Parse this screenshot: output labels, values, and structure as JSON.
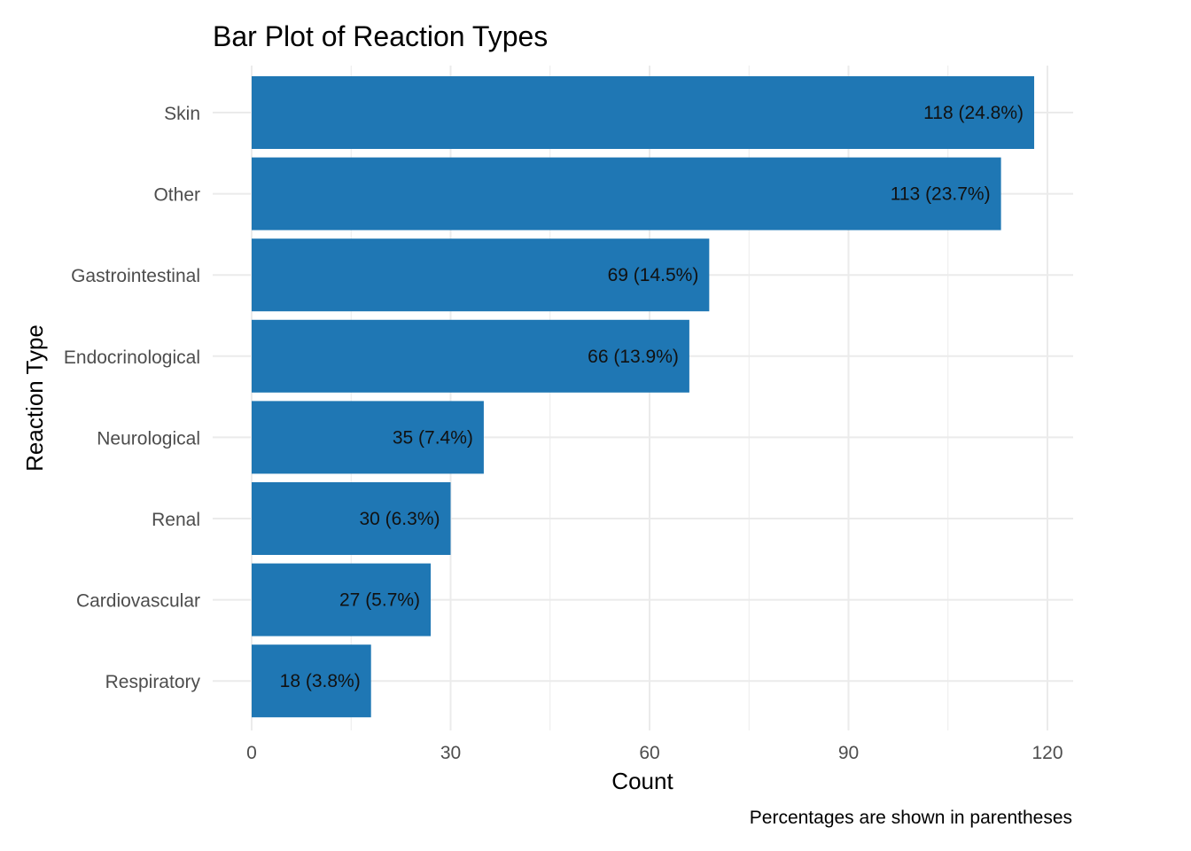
{
  "chart_data": {
    "type": "bar",
    "orientation": "horizontal",
    "title": "Bar Plot of Reaction Types",
    "xlabel": "Count",
    "ylabel": "Reaction Type",
    "caption": "Percentages are shown in parentheses",
    "categories": [
      "Skin",
      "Other",
      "Gastrointestinal",
      "Endocrinological",
      "Neurological",
      "Renal",
      "Cardiovascular",
      "Respiratory"
    ],
    "values": [
      118,
      113,
      69,
      66,
      35,
      30,
      27,
      18
    ],
    "data_labels": [
      "118 (24.8%)",
      "113 (23.7%)",
      "69 (14.5%)",
      "66 (13.9%)",
      "35 (7.4%)",
      "30 (6.3%)",
      "27 (5.7%)",
      "18 (3.8%)"
    ],
    "xlim": [
      0,
      124
    ],
    "xticks": [
      0,
      30,
      60,
      90,
      120
    ],
    "grid": true,
    "legend": "none",
    "bar_color": "#1f77b4",
    "grid_color": "#ebebeb"
  }
}
